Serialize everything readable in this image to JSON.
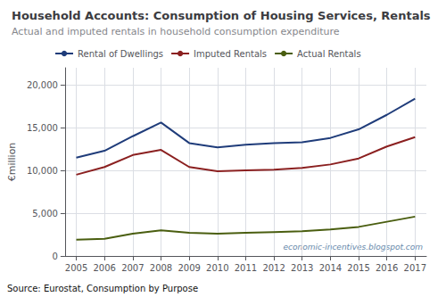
{
  "chart_data": {
    "type": "line",
    "title": "Household Accounts: Consumption of Housing Services, Rentals",
    "subtitle": "Actual and imputed rentals in household consumption expenditure",
    "ylabel": "€million",
    "x": [
      2005,
      2006,
      2007,
      2008,
      2009,
      2010,
      2011,
      2012,
      2013,
      2014,
      2015,
      2016,
      2017
    ],
    "series": [
      {
        "name": "Rental of Dwellings",
        "color": "#1f3c7a",
        "values": [
          11500,
          12300,
          14000,
          15600,
          13200,
          12700,
          13000,
          13200,
          13300,
          13800,
          14800,
          16500,
          18400
        ]
      },
      {
        "name": "Imputed Rentals",
        "color": "#8b2020",
        "values": [
          9500,
          10400,
          11800,
          12400,
          10400,
          9900,
          10000,
          10100,
          10300,
          10700,
          11400,
          12800,
          13900
        ]
      },
      {
        "name": "Actual Rentals",
        "color": "#4a5e10",
        "values": [
          1900,
          2000,
          2600,
          3000,
          2700,
          2600,
          2700,
          2800,
          2900,
          3100,
          3400,
          4000,
          4600
        ]
      }
    ],
    "xlim": [
      2004.6,
      2017.4
    ],
    "xticks": [
      2005,
      2006,
      2007,
      2008,
      2009,
      2010,
      2011,
      2012,
      2013,
      2014,
      2015,
      2016,
      2017
    ],
    "ylim": [
      0,
      22000
    ],
    "yticks": [
      0,
      {
        "value": 5000,
        "label": "5,000"
      },
      {
        "value": 10000,
        "label": "10,000"
      },
      {
        "value": 15000,
        "label": "15,000"
      },
      {
        "value": 20000,
        "label": "20,000"
      }
    ],
    "grid": true,
    "legend": "upper left",
    "annotations": [
      "economic-incentives.blogspot.com",
      "Source: Eurostat, Consumption by Purpose"
    ]
  }
}
